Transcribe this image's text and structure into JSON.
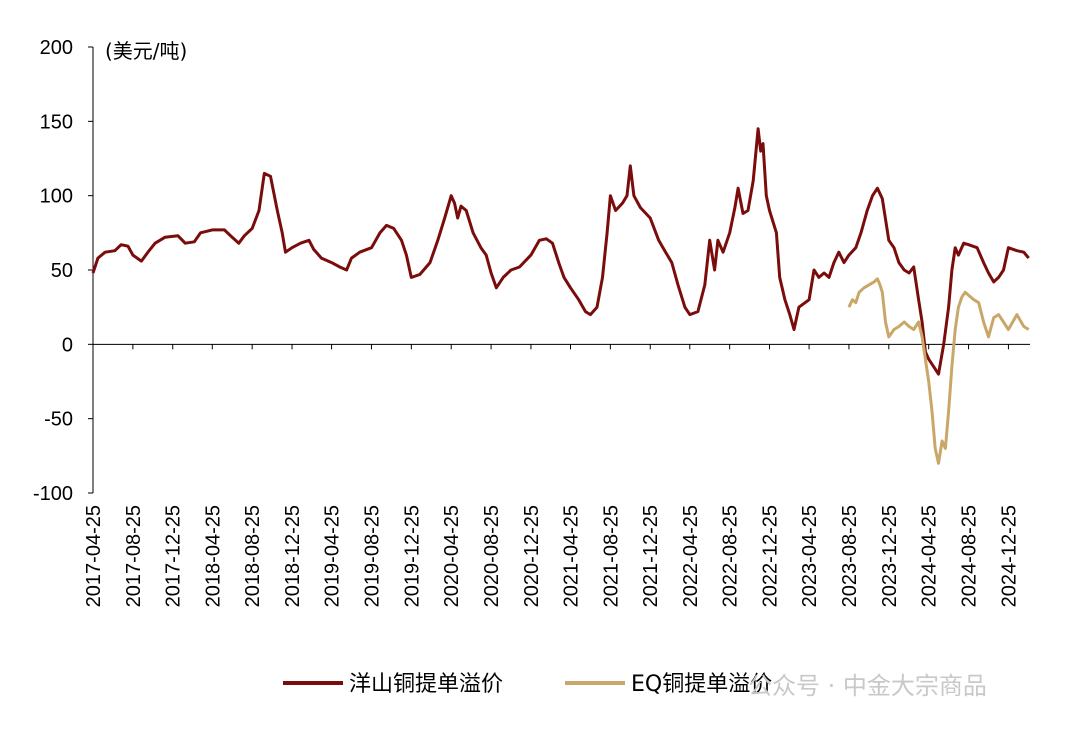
{
  "chart_data": {
    "type": "line",
    "title": "",
    "unit_label": "(美元/吨)",
    "xlabel": "",
    "ylabel": "",
    "ylim": [
      -100,
      200
    ],
    "yticks": [
      200,
      150,
      100,
      50,
      0,
      -50,
      -100
    ],
    "xtick_labels": [
      "2017-04-25",
      "2017-08-25",
      "2017-12-25",
      "2018-04-25",
      "2018-08-25",
      "2018-12-25",
      "2019-04-25",
      "2019-08-25",
      "2019-12-25",
      "2020-04-25",
      "2020-08-25",
      "2020-12-25",
      "2021-04-25",
      "2021-08-25",
      "2021-12-25",
      "2022-04-25",
      "2022-08-25",
      "2022-12-25",
      "2023-04-25",
      "2023-08-25",
      "2023-12-25",
      "2024-04-25",
      "2024-08-25",
      "2024-12-25"
    ],
    "legend_position": "bottom",
    "series": [
      {
        "name": "洋山铜提单溢价",
        "color": "#7b0c0c",
        "points": [
          [
            "2017-04-25",
            48
          ],
          [
            "2017-05-10",
            58
          ],
          [
            "2017-06-01",
            62
          ],
          [
            "2017-07-01",
            63
          ],
          [
            "2017-07-20",
            67
          ],
          [
            "2017-08-10",
            66
          ],
          [
            "2017-08-25",
            60
          ],
          [
            "2017-09-20",
            56
          ],
          [
            "2017-10-10",
            62
          ],
          [
            "2017-11-01",
            68
          ],
          [
            "2017-12-01",
            72
          ],
          [
            "2018-01-10",
            73
          ],
          [
            "2018-02-01",
            68
          ],
          [
            "2018-03-01",
            69
          ],
          [
            "2018-03-20",
            75
          ],
          [
            "2018-04-25",
            77
          ],
          [
            "2018-06-01",
            77
          ],
          [
            "2018-06-25",
            72
          ],
          [
            "2018-07-15",
            68
          ],
          [
            "2018-08-01",
            73
          ],
          [
            "2018-08-25",
            78
          ],
          [
            "2018-09-15",
            90
          ],
          [
            "2018-10-01",
            115
          ],
          [
            "2018-10-20",
            113
          ],
          [
            "2018-11-10",
            90
          ],
          [
            "2018-11-25",
            75
          ],
          [
            "2018-12-05",
            62
          ],
          [
            "2018-12-25",
            65
          ],
          [
            "2019-01-20",
            68
          ],
          [
            "2019-02-15",
            70
          ],
          [
            "2019-03-01",
            64
          ],
          [
            "2019-03-25",
            58
          ],
          [
            "2019-04-25",
            55
          ],
          [
            "2019-05-20",
            52
          ],
          [
            "2019-06-10",
            50
          ],
          [
            "2019-06-25",
            58
          ],
          [
            "2019-07-20",
            62
          ],
          [
            "2019-08-25",
            65
          ],
          [
            "2019-09-20",
            75
          ],
          [
            "2019-10-10",
            80
          ],
          [
            "2019-11-01",
            78
          ],
          [
            "2019-11-25",
            70
          ],
          [
            "2019-12-10",
            60
          ],
          [
            "2019-12-25",
            45
          ],
          [
            "2020-01-20",
            47
          ],
          [
            "2020-02-20",
            55
          ],
          [
            "2020-03-15",
            70
          ],
          [
            "2020-04-05",
            85
          ],
          [
            "2020-04-25",
            100
          ],
          [
            "2020-05-05",
            95
          ],
          [
            "2020-05-15",
            85
          ],
          [
            "2020-05-25",
            93
          ],
          [
            "2020-06-10",
            90
          ],
          [
            "2020-07-01",
            75
          ],
          [
            "2020-07-25",
            65
          ],
          [
            "2020-08-10",
            60
          ],
          [
            "2020-08-25",
            48
          ],
          [
            "2020-09-10",
            38
          ],
          [
            "2020-10-01",
            45
          ],
          [
            "2020-10-25",
            50
          ],
          [
            "2020-11-20",
            52
          ],
          [
            "2020-12-25",
            60
          ],
          [
            "2021-01-20",
            70
          ],
          [
            "2021-02-10",
            71
          ],
          [
            "2021-03-01",
            68
          ],
          [
            "2021-03-20",
            55
          ],
          [
            "2021-04-05",
            45
          ],
          [
            "2021-04-25",
            38
          ],
          [
            "2021-05-20",
            30
          ],
          [
            "2021-06-10",
            22
          ],
          [
            "2021-06-25",
            20
          ],
          [
            "2021-07-15",
            25
          ],
          [
            "2021-08-01",
            45
          ],
          [
            "2021-08-15",
            75
          ],
          [
            "2021-08-25",
            100
          ],
          [
            "2021-09-10",
            90
          ],
          [
            "2021-10-01",
            95
          ],
          [
            "2021-10-15",
            100
          ],
          [
            "2021-10-25",
            120
          ],
          [
            "2021-11-05",
            100
          ],
          [
            "2021-11-25",
            92
          ],
          [
            "2021-12-25",
            85
          ],
          [
            "2022-01-20",
            70
          ],
          [
            "2022-02-10",
            62
          ],
          [
            "2022-03-01",
            55
          ],
          [
            "2022-03-20",
            40
          ],
          [
            "2022-04-10",
            25
          ],
          [
            "2022-04-25",
            20
          ],
          [
            "2022-05-20",
            22
          ],
          [
            "2022-06-10",
            40
          ],
          [
            "2022-06-25",
            70
          ],
          [
            "2022-07-10",
            50
          ],
          [
            "2022-07-20",
            70
          ],
          [
            "2022-08-05",
            62
          ],
          [
            "2022-08-25",
            75
          ],
          [
            "2022-09-10",
            92
          ],
          [
            "2022-09-20",
            105
          ],
          [
            "2022-10-05",
            88
          ],
          [
            "2022-10-20",
            90
          ],
          [
            "2022-11-05",
            110
          ],
          [
            "2022-11-20",
            145
          ],
          [
            "2022-11-28",
            130
          ],
          [
            "2022-12-05",
            135
          ],
          [
            "2022-12-15",
            100
          ],
          [
            "2022-12-25",
            90
          ],
          [
            "2023-01-15",
            75
          ],
          [
            "2023-01-25",
            45
          ],
          [
            "2023-02-10",
            30
          ],
          [
            "2023-02-25",
            20
          ],
          [
            "2023-03-10",
            10
          ],
          [
            "2023-03-25",
            25
          ],
          [
            "2023-04-25",
            30
          ],
          [
            "2023-05-10",
            50
          ],
          [
            "2023-05-25",
            45
          ],
          [
            "2023-06-10",
            48
          ],
          [
            "2023-06-25",
            45
          ],
          [
            "2023-07-10",
            55
          ],
          [
            "2023-07-25",
            62
          ],
          [
            "2023-08-10",
            55
          ],
          [
            "2023-08-25",
            60
          ],
          [
            "2023-09-15",
            65
          ],
          [
            "2023-10-01",
            75
          ],
          [
            "2023-10-20",
            90
          ],
          [
            "2023-11-05",
            100
          ],
          [
            "2023-11-20",
            105
          ],
          [
            "2023-12-05",
            98
          ],
          [
            "2023-12-25",
            70
          ],
          [
            "2024-01-10",
            65
          ],
          [
            "2024-01-25",
            55
          ],
          [
            "2024-02-10",
            50
          ],
          [
            "2024-02-25",
            48
          ],
          [
            "2024-03-10",
            52
          ],
          [
            "2024-03-25",
            30
          ],
          [
            "2024-04-05",
            15
          ],
          [
            "2024-04-15",
            -5
          ],
          [
            "2024-04-25",
            -10
          ],
          [
            "2024-05-10",
            -15
          ],
          [
            "2024-05-25",
            -20
          ],
          [
            "2024-06-10",
            0
          ],
          [
            "2024-06-25",
            25
          ],
          [
            "2024-07-05",
            50
          ],
          [
            "2024-07-15",
            65
          ],
          [
            "2024-07-25",
            60
          ],
          [
            "2024-08-10",
            68
          ],
          [
            "2024-08-25",
            67
          ],
          [
            "2024-09-20",
            65
          ],
          [
            "2024-10-10",
            55
          ],
          [
            "2024-10-25",
            48
          ],
          [
            "2024-11-10",
            42
          ],
          [
            "2024-11-25",
            45
          ],
          [
            "2024-12-10",
            50
          ],
          [
            "2024-12-25",
            65
          ],
          [
            "2025-01-20",
            63
          ],
          [
            "2025-02-10",
            62
          ],
          [
            "2025-02-25",
            58
          ]
        ]
      },
      {
        "name": "EQ铜提单溢价",
        "color": "#c9a769",
        "points": [
          [
            "2023-08-25",
            25
          ],
          [
            "2023-09-05",
            30
          ],
          [
            "2023-09-15",
            28
          ],
          [
            "2023-09-25",
            35
          ],
          [
            "2023-10-10",
            38
          ],
          [
            "2023-10-25",
            40
          ],
          [
            "2023-11-10",
            42
          ],
          [
            "2023-11-20",
            44
          ],
          [
            "2023-11-28",
            40
          ],
          [
            "2023-12-05",
            35
          ],
          [
            "2023-12-15",
            15
          ],
          [
            "2023-12-25",
            5
          ],
          [
            "2024-01-10",
            10
          ],
          [
            "2024-01-25",
            12
          ],
          [
            "2024-02-10",
            15
          ],
          [
            "2024-02-25",
            12
          ],
          [
            "2024-03-10",
            10
          ],
          [
            "2024-03-25",
            15
          ],
          [
            "2024-04-05",
            5
          ],
          [
            "2024-04-15",
            -10
          ],
          [
            "2024-04-25",
            -25
          ],
          [
            "2024-05-05",
            -45
          ],
          [
            "2024-05-15",
            -70
          ],
          [
            "2024-05-25",
            -80
          ],
          [
            "2024-06-05",
            -65
          ],
          [
            "2024-06-15",
            -70
          ],
          [
            "2024-06-25",
            -45
          ],
          [
            "2024-07-05",
            -15
          ],
          [
            "2024-07-15",
            10
          ],
          [
            "2024-07-25",
            25
          ],
          [
            "2024-08-05",
            32
          ],
          [
            "2024-08-15",
            35
          ],
          [
            "2024-08-25",
            33
          ],
          [
            "2024-09-10",
            30
          ],
          [
            "2024-09-25",
            28
          ],
          [
            "2024-10-10",
            15
          ],
          [
            "2024-10-25",
            5
          ],
          [
            "2024-11-10",
            18
          ],
          [
            "2024-11-25",
            20
          ],
          [
            "2024-12-10",
            15
          ],
          [
            "2024-12-25",
            10
          ],
          [
            "2025-01-20",
            20
          ],
          [
            "2025-02-10",
            12
          ],
          [
            "2025-02-25",
            10
          ]
        ]
      }
    ]
  },
  "watermark": "公众号 · 中金大宗商品"
}
